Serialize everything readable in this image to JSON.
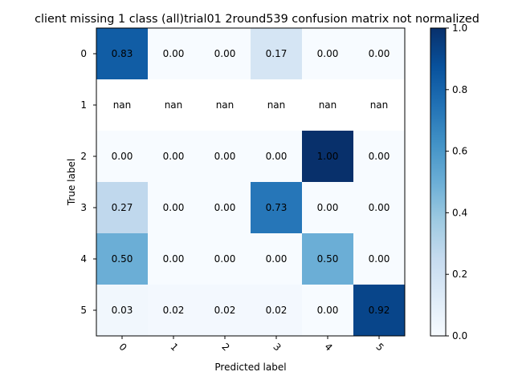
{
  "chart_data": {
    "type": "heatmap",
    "title": "client missing 1 class (all)trial01 2round539 confusion matrix not normalized",
    "xlabel": "Predicted label",
    "ylabel": "True label",
    "x_categories": [
      "0",
      "1",
      "2",
      "3",
      "4",
      "5"
    ],
    "y_categories": [
      "0",
      "1",
      "2",
      "3",
      "4",
      "5"
    ],
    "values": [
      [
        0.83,
        0.0,
        0.0,
        0.17,
        0.0,
        0.0
      ],
      [
        null,
        null,
        null,
        null,
        null,
        null
      ],
      [
        0.0,
        0.0,
        0.0,
        0.0,
        1.0,
        0.0
      ],
      [
        0.27,
        0.0,
        0.0,
        0.73,
        0.0,
        0.0
      ],
      [
        0.5,
        0.0,
        0.0,
        0.0,
        0.5,
        0.0
      ],
      [
        0.03,
        0.02,
        0.02,
        0.02,
        0.0,
        0.92
      ]
    ],
    "cell_labels": [
      [
        "0.83",
        "0.00",
        "0.00",
        "0.17",
        "0.00",
        "0.00"
      ],
      [
        "nan",
        "nan",
        "nan",
        "nan",
        "nan",
        "nan"
      ],
      [
        "0.00",
        "0.00",
        "0.00",
        "0.00",
        "1.00",
        "0.00"
      ],
      [
        "0.27",
        "0.00",
        "0.00",
        "0.73",
        "0.00",
        "0.00"
      ],
      [
        "0.50",
        "0.00",
        "0.00",
        "0.00",
        "0.50",
        "0.00"
      ],
      [
        "0.03",
        "0.02",
        "0.02",
        "0.02",
        "0.00",
        "0.92"
      ]
    ],
    "colormap": "Blues",
    "colorbar": {
      "range": [
        0.0,
        1.0
      ],
      "ticks": [
        "0.0",
        "0.2",
        "0.4",
        "0.6",
        "0.8",
        "1.0"
      ]
    },
    "xtick_rotation_deg": 45,
    "grid": false
  }
}
